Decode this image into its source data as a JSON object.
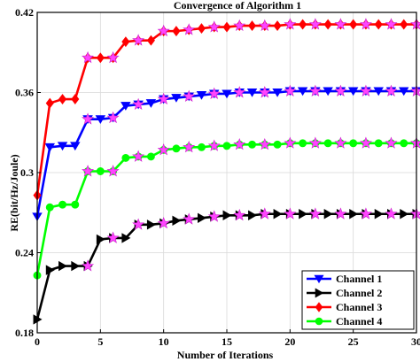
{
  "chart_data": {
    "type": "line",
    "title": "Convergence of Algorithm 1",
    "xlabel": "Number of Iterations",
    "ylabel": "RE(bit/Hz/Joule)",
    "xlim": [
      0,
      30
    ],
    "ylim": [
      0.18,
      0.42
    ],
    "xticks": [
      0,
      5,
      10,
      15,
      20,
      25,
      30
    ],
    "yticks": [
      0.18,
      0.24,
      0.3,
      0.36,
      0.42
    ],
    "ytick_labels": [
      "0.18",
      "0.24",
      "0.3",
      "0.36",
      "0.42"
    ],
    "grid": true,
    "legend_position": "bottom-right",
    "x": [
      0,
      1,
      2,
      3,
      4,
      5,
      6,
      7,
      8,
      9,
      10,
      11,
      12,
      13,
      14,
      15,
      16,
      17,
      18,
      19,
      20,
      21,
      22,
      23,
      24,
      25,
      26,
      27,
      28,
      29,
      30
    ],
    "series": [
      {
        "name": "Channel 1",
        "color": "#0000ff",
        "marker": "triangle-down",
        "values": [
          0.267,
          0.319,
          0.32,
          0.32,
          0.34,
          0.34,
          0.341,
          0.35,
          0.351,
          0.352,
          0.355,
          0.356,
          0.357,
          0.358,
          0.359,
          0.359,
          0.36,
          0.36,
          0.36,
          0.36,
          0.361,
          0.361,
          0.361,
          0.361,
          0.361,
          0.361,
          0.361,
          0.361,
          0.361,
          0.361,
          0.361
        ]
      },
      {
        "name": "Channel 2",
        "color": "#000000",
        "marker": "triangle-right",
        "values": [
          0.19,
          0.227,
          0.23,
          0.23,
          0.23,
          0.25,
          0.251,
          0.251,
          0.261,
          0.261,
          0.262,
          0.264,
          0.265,
          0.266,
          0.267,
          0.268,
          0.268,
          0.268,
          0.269,
          0.269,
          0.269,
          0.269,
          0.269,
          0.269,
          0.269,
          0.269,
          0.269,
          0.269,
          0.269,
          0.269,
          0.269
        ]
      },
      {
        "name": "Channel 3",
        "color": "#ff0000",
        "marker": "diamond",
        "values": [
          0.283,
          0.352,
          0.355,
          0.355,
          0.386,
          0.386,
          0.386,
          0.398,
          0.399,
          0.399,
          0.406,
          0.406,
          0.407,
          0.408,
          0.409,
          0.409,
          0.41,
          0.41,
          0.41,
          0.41,
          0.411,
          0.411,
          0.411,
          0.411,
          0.411,
          0.411,
          0.411,
          0.411,
          0.411,
          0.411,
          0.411
        ]
      },
      {
        "name": "Channel 4",
        "color": "#00ff00",
        "marker": "circle",
        "values": [
          0.223,
          0.274,
          0.276,
          0.276,
          0.301,
          0.301,
          0.301,
          0.311,
          0.312,
          0.312,
          0.317,
          0.318,
          0.319,
          0.319,
          0.32,
          0.32,
          0.321,
          0.321,
          0.321,
          0.321,
          0.322,
          0.322,
          0.322,
          0.322,
          0.322,
          0.322,
          0.322,
          0.322,
          0.322,
          0.322,
          0.322
        ]
      }
    ],
    "overlay_marker": {
      "marker": "star",
      "color": "#ff44ff"
    }
  }
}
